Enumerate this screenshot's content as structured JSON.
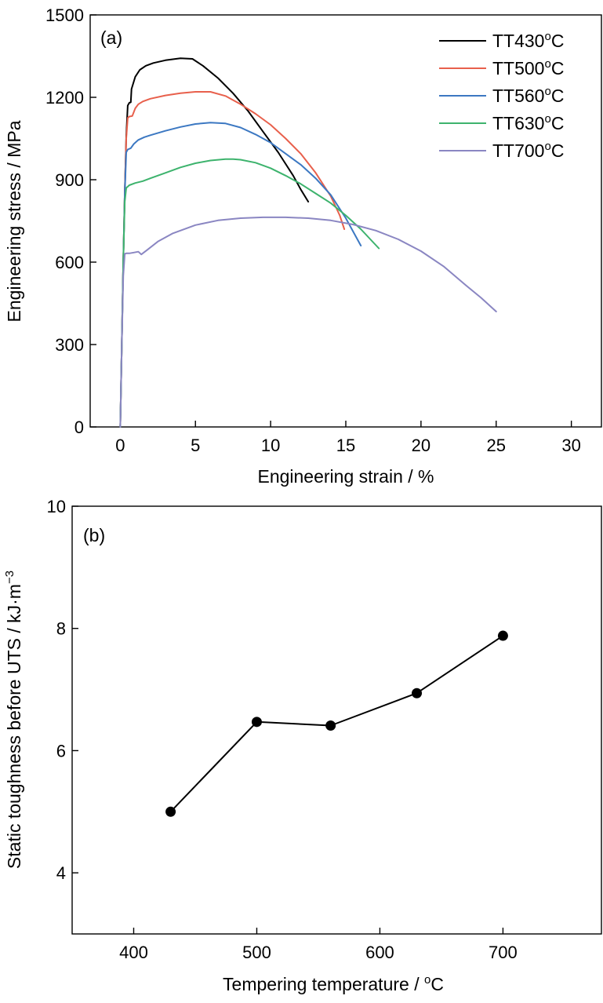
{
  "chart_data": [
    {
      "type": "line",
      "panel_label": "(a)",
      "xlabel": "Engineering strain / %",
      "ylabel": "Engineering stress / MPa",
      "xlim": [
        -2,
        32
      ],
      "ylim": [
        0,
        1500
      ],
      "xticks": [
        0,
        5,
        10,
        15,
        20,
        25,
        30
      ],
      "yticks": [
        0,
        300,
        600,
        900,
        1200,
        1500
      ],
      "grid": false,
      "legend_position": "top-right",
      "series": [
        {
          "name": "TT430",
          "name_sup": "o",
          "name_suffix": "C",
          "color": "#000000",
          "x": [
            0,
            0.1,
            0.2,
            0.3,
            0.4,
            0.5,
            0.6,
            0.7,
            0.75,
            1.0,
            1.3,
            1.7,
            2.2,
            3.0,
            4.0,
            4.8,
            5.5,
            6.5,
            7.5,
            8.5,
            9.5,
            10.5,
            11.5,
            12.0,
            12.5
          ],
          "y": [
            0,
            300,
            600,
            850,
            1060,
            1170,
            1180,
            1182,
            1230,
            1275,
            1300,
            1315,
            1325,
            1335,
            1342,
            1340,
            1315,
            1270,
            1215,
            1150,
            1075,
            1000,
            915,
            865,
            820
          ]
        },
        {
          "name": "TT500",
          "name_sup": "o",
          "name_suffix": "C",
          "color": "#E8604C",
          "x": [
            0,
            0.1,
            0.2,
            0.3,
            0.4,
            0.5,
            0.6,
            0.8,
            1.0,
            1.2,
            1.5,
            2.0,
            3.0,
            4.0,
            5.0,
            6.0,
            7.0,
            8.0,
            9.0,
            10.0,
            11.0,
            12.0,
            13.0,
            14.0,
            14.6,
            14.9
          ],
          "y": [
            0,
            300,
            600,
            850,
            1050,
            1125,
            1130,
            1132,
            1160,
            1175,
            1185,
            1195,
            1207,
            1215,
            1220,
            1220,
            1205,
            1175,
            1140,
            1100,
            1050,
            995,
            925,
            840,
            770,
            720
          ]
        },
        {
          "name": "TT560",
          "name_sup": "o",
          "name_suffix": "C",
          "color": "#3C78C2",
          "x": [
            0,
            0.1,
            0.2,
            0.3,
            0.4,
            0.5,
            0.7,
            0.9,
            1.2,
            1.6,
            2.0,
            3.0,
            4.0,
            5.0,
            6.0,
            7.0,
            8.0,
            9.0,
            10.0,
            11.0,
            12.0,
            13.0,
            14.0,
            15.0,
            16.0
          ],
          "y": [
            0,
            300,
            600,
            850,
            1000,
            1010,
            1015,
            1030,
            1045,
            1055,
            1062,
            1078,
            1092,
            1103,
            1108,
            1105,
            1090,
            1065,
            1035,
            995,
            955,
            905,
            845,
            760,
            660
          ]
        },
        {
          "name": "TT630",
          "name_sup": "o",
          "name_suffix": "C",
          "color": "#3DB36D",
          "x": [
            0,
            0.1,
            0.2,
            0.3,
            0.4,
            0.6,
            1.0,
            1.5,
            2.0,
            3.0,
            4.0,
            5.0,
            6.0,
            7.0,
            7.5,
            8.0,
            9.0,
            10.0,
            11.0,
            12.0,
            13.0,
            14.0,
            15.0,
            16.0,
            17.2
          ],
          "y": [
            0,
            300,
            600,
            820,
            870,
            880,
            888,
            895,
            905,
            925,
            945,
            960,
            970,
            975,
            975,
            973,
            962,
            942,
            915,
            885,
            850,
            815,
            770,
            720,
            650
          ]
        },
        {
          "name": "TT700",
          "name_sup": "o",
          "name_suffix": "C",
          "color": "#8A86C2",
          "x": [
            0,
            0.1,
            0.2,
            0.3,
            0.4,
            0.6,
            0.9,
            1.2,
            1.4,
            1.8,
            2.5,
            3.5,
            5.0,
            6.5,
            8.0,
            9.5,
            11.0,
            12.5,
            14.0,
            15.5,
            17.0,
            18.5,
            20.0,
            21.5,
            23.0,
            24.0,
            25.0
          ],
          "y": [
            0,
            300,
            550,
            630,
            632,
            632,
            635,
            638,
            628,
            645,
            675,
            705,
            735,
            752,
            760,
            763,
            763,
            760,
            752,
            737,
            715,
            683,
            640,
            585,
            515,
            470,
            420
          ]
        }
      ]
    },
    {
      "type": "line",
      "panel_label": "(b)",
      "xlabel": "Tempering temperature / ",
      "xlabel_sup": "o",
      "xlabel_suffix": "C",
      "ylabel": "Static toughness before UTS / kJ·m",
      "ylabel_sup": "−3",
      "xlim": [
        350,
        780
      ],
      "ylim": [
        3,
        10
      ],
      "xticks": [
        400,
        500,
        600,
        700
      ],
      "yticks": [
        4,
        6,
        8,
        10
      ],
      "grid": false,
      "markers": true,
      "series": [
        {
          "color": "#000000",
          "x": [
            430,
            500,
            560,
            630,
            700
          ],
          "y": [
            5.0,
            6.47,
            6.41,
            6.94,
            7.88
          ]
        }
      ]
    }
  ]
}
